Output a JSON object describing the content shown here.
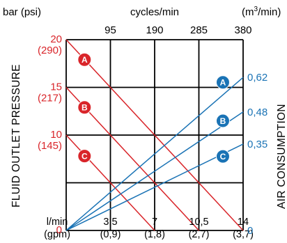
{
  "chart_data": {
    "type": "line",
    "header": {
      "left_unit": "bar (psi)",
      "top_unit": "cycles/min",
      "right_unit_pre": "(m",
      "right_unit_sup": "3",
      "right_unit_post": "/min)"
    },
    "left_axis_title": "FLUID OUTLET PRESSURE",
    "right_axis_title": "AIR CONSUMPTION",
    "x_axis": {
      "unit_line1": "l/min",
      "unit_line2": "(gpm)",
      "range": [
        0,
        14
      ],
      "ticks": [
        {
          "value": 3.5,
          "line1": "3,5",
          "line2": "(0,9)"
        },
        {
          "value": 7,
          "line1": "7",
          "line2": "(1,8)"
        },
        {
          "value": 10.5,
          "line1": "10,5",
          "line2": "(2,7)"
        },
        {
          "value": 14,
          "line1": "14",
          "line2": "(3,7)"
        }
      ]
    },
    "top_axis": {
      "range": [
        0,
        380
      ],
      "ticks": [
        "95",
        "190",
        "285",
        "380"
      ]
    },
    "left_axis": {
      "range": [
        0,
        20
      ],
      "ticks": [
        {
          "value": 0,
          "line1": "0",
          "line2": ""
        },
        {
          "value": 10,
          "line1": "10",
          "line2": "(145)"
        },
        {
          "value": 15,
          "line1": "15",
          "line2": "(217)"
        },
        {
          "value": 20,
          "line1": "20",
          "line2": "(290)"
        }
      ]
    },
    "right_axis": {
      "range": [
        0,
        0.7727
      ],
      "ticks": [
        {
          "value": 0,
          "label": "0"
        },
        {
          "value": 0.35,
          "label": "0,35"
        },
        {
          "value": 0.48,
          "label": "0,48"
        },
        {
          "value": 0.62,
          "label": "0,62"
        }
      ]
    },
    "gridlines_bar": [
      5,
      10,
      15,
      20
    ],
    "pressure_series": [
      {
        "name": "A",
        "points": [
          [
            0,
            20
          ],
          [
            14,
            0
          ]
        ],
        "badge_at": [
          1.45,
          17.9
        ]
      },
      {
        "name": "B",
        "points": [
          [
            0,
            15
          ],
          [
            10.5,
            0
          ]
        ],
        "badge_at": [
          1.45,
          12.9
        ]
      },
      {
        "name": "C",
        "points": [
          [
            0,
            10
          ],
          [
            7,
            0
          ]
        ],
        "badge_at": [
          1.45,
          7.8
        ]
      }
    ],
    "air_series": [
      {
        "name": "A",
        "points": [
          [
            0,
            0
          ],
          [
            14,
            0.62
          ]
        ],
        "badge_at": [
          12.4,
          0.6
        ]
      },
      {
        "name": "B",
        "points": [
          [
            0,
            0
          ],
          [
            14,
            0.48
          ]
        ],
        "badge_at": [
          12.4,
          0.444
        ]
      },
      {
        "name": "C",
        "points": [
          [
            0,
            0
          ],
          [
            14,
            0.35
          ]
        ],
        "badge_at": [
          12.4,
          0.3
        ]
      }
    ],
    "colors": {
      "pressure": "#d9252a",
      "air": "#1a73b5",
      "grid": "#000000"
    }
  }
}
